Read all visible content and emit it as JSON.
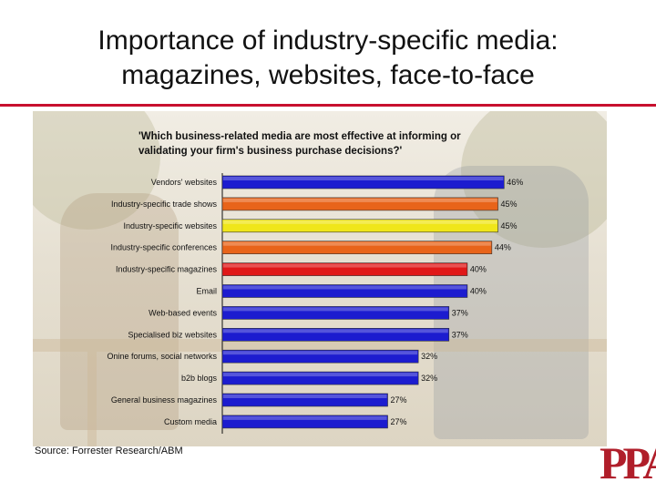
{
  "slide": {
    "title_line1": "Importance of industry-specific media:",
    "title_line2": "magazines, websites, face-to-face",
    "source": "Source: Forrester Research/ABM",
    "logo_text": "PPAI",
    "accent_color": "#c8102e"
  },
  "chart_data": {
    "type": "bar",
    "orientation": "horizontal",
    "question_line1": "'Which business-related media are most effective at informing or",
    "question_line2": "validating your firm's business purchase decisions?'",
    "categories": [
      "Vendors' websites",
      "Industry-specific trade shows",
      "Industry-specific websites",
      "Industry-specific conferences",
      "Industry-specific magazines",
      "Email",
      "Web-based events",
      "Specialised biz websites",
      "Onine forums, social networks",
      "b2b blogs",
      "General business magazines",
      "Custom media"
    ],
    "values": [
      46,
      45,
      45,
      44,
      40,
      40,
      37,
      37,
      32,
      32,
      27,
      27
    ],
    "value_labels": [
      "46%",
      "45%",
      "45%",
      "44%",
      "40%",
      "40%",
      "37%",
      "37%",
      "32%",
      "32%",
      "27%",
      "27%"
    ],
    "bar_colors": [
      "#1c1ccf",
      "#e8641a",
      "#f0e61a",
      "#e8641a",
      "#e01818",
      "#1c1ccf",
      "#1c1ccf",
      "#1c1ccf",
      "#1c1ccf",
      "#1c1ccf",
      "#1c1ccf",
      "#1c1ccf"
    ],
    "unit": "%",
    "xlim": [
      0,
      47
    ],
    "grid": false,
    "legend": "none"
  }
}
